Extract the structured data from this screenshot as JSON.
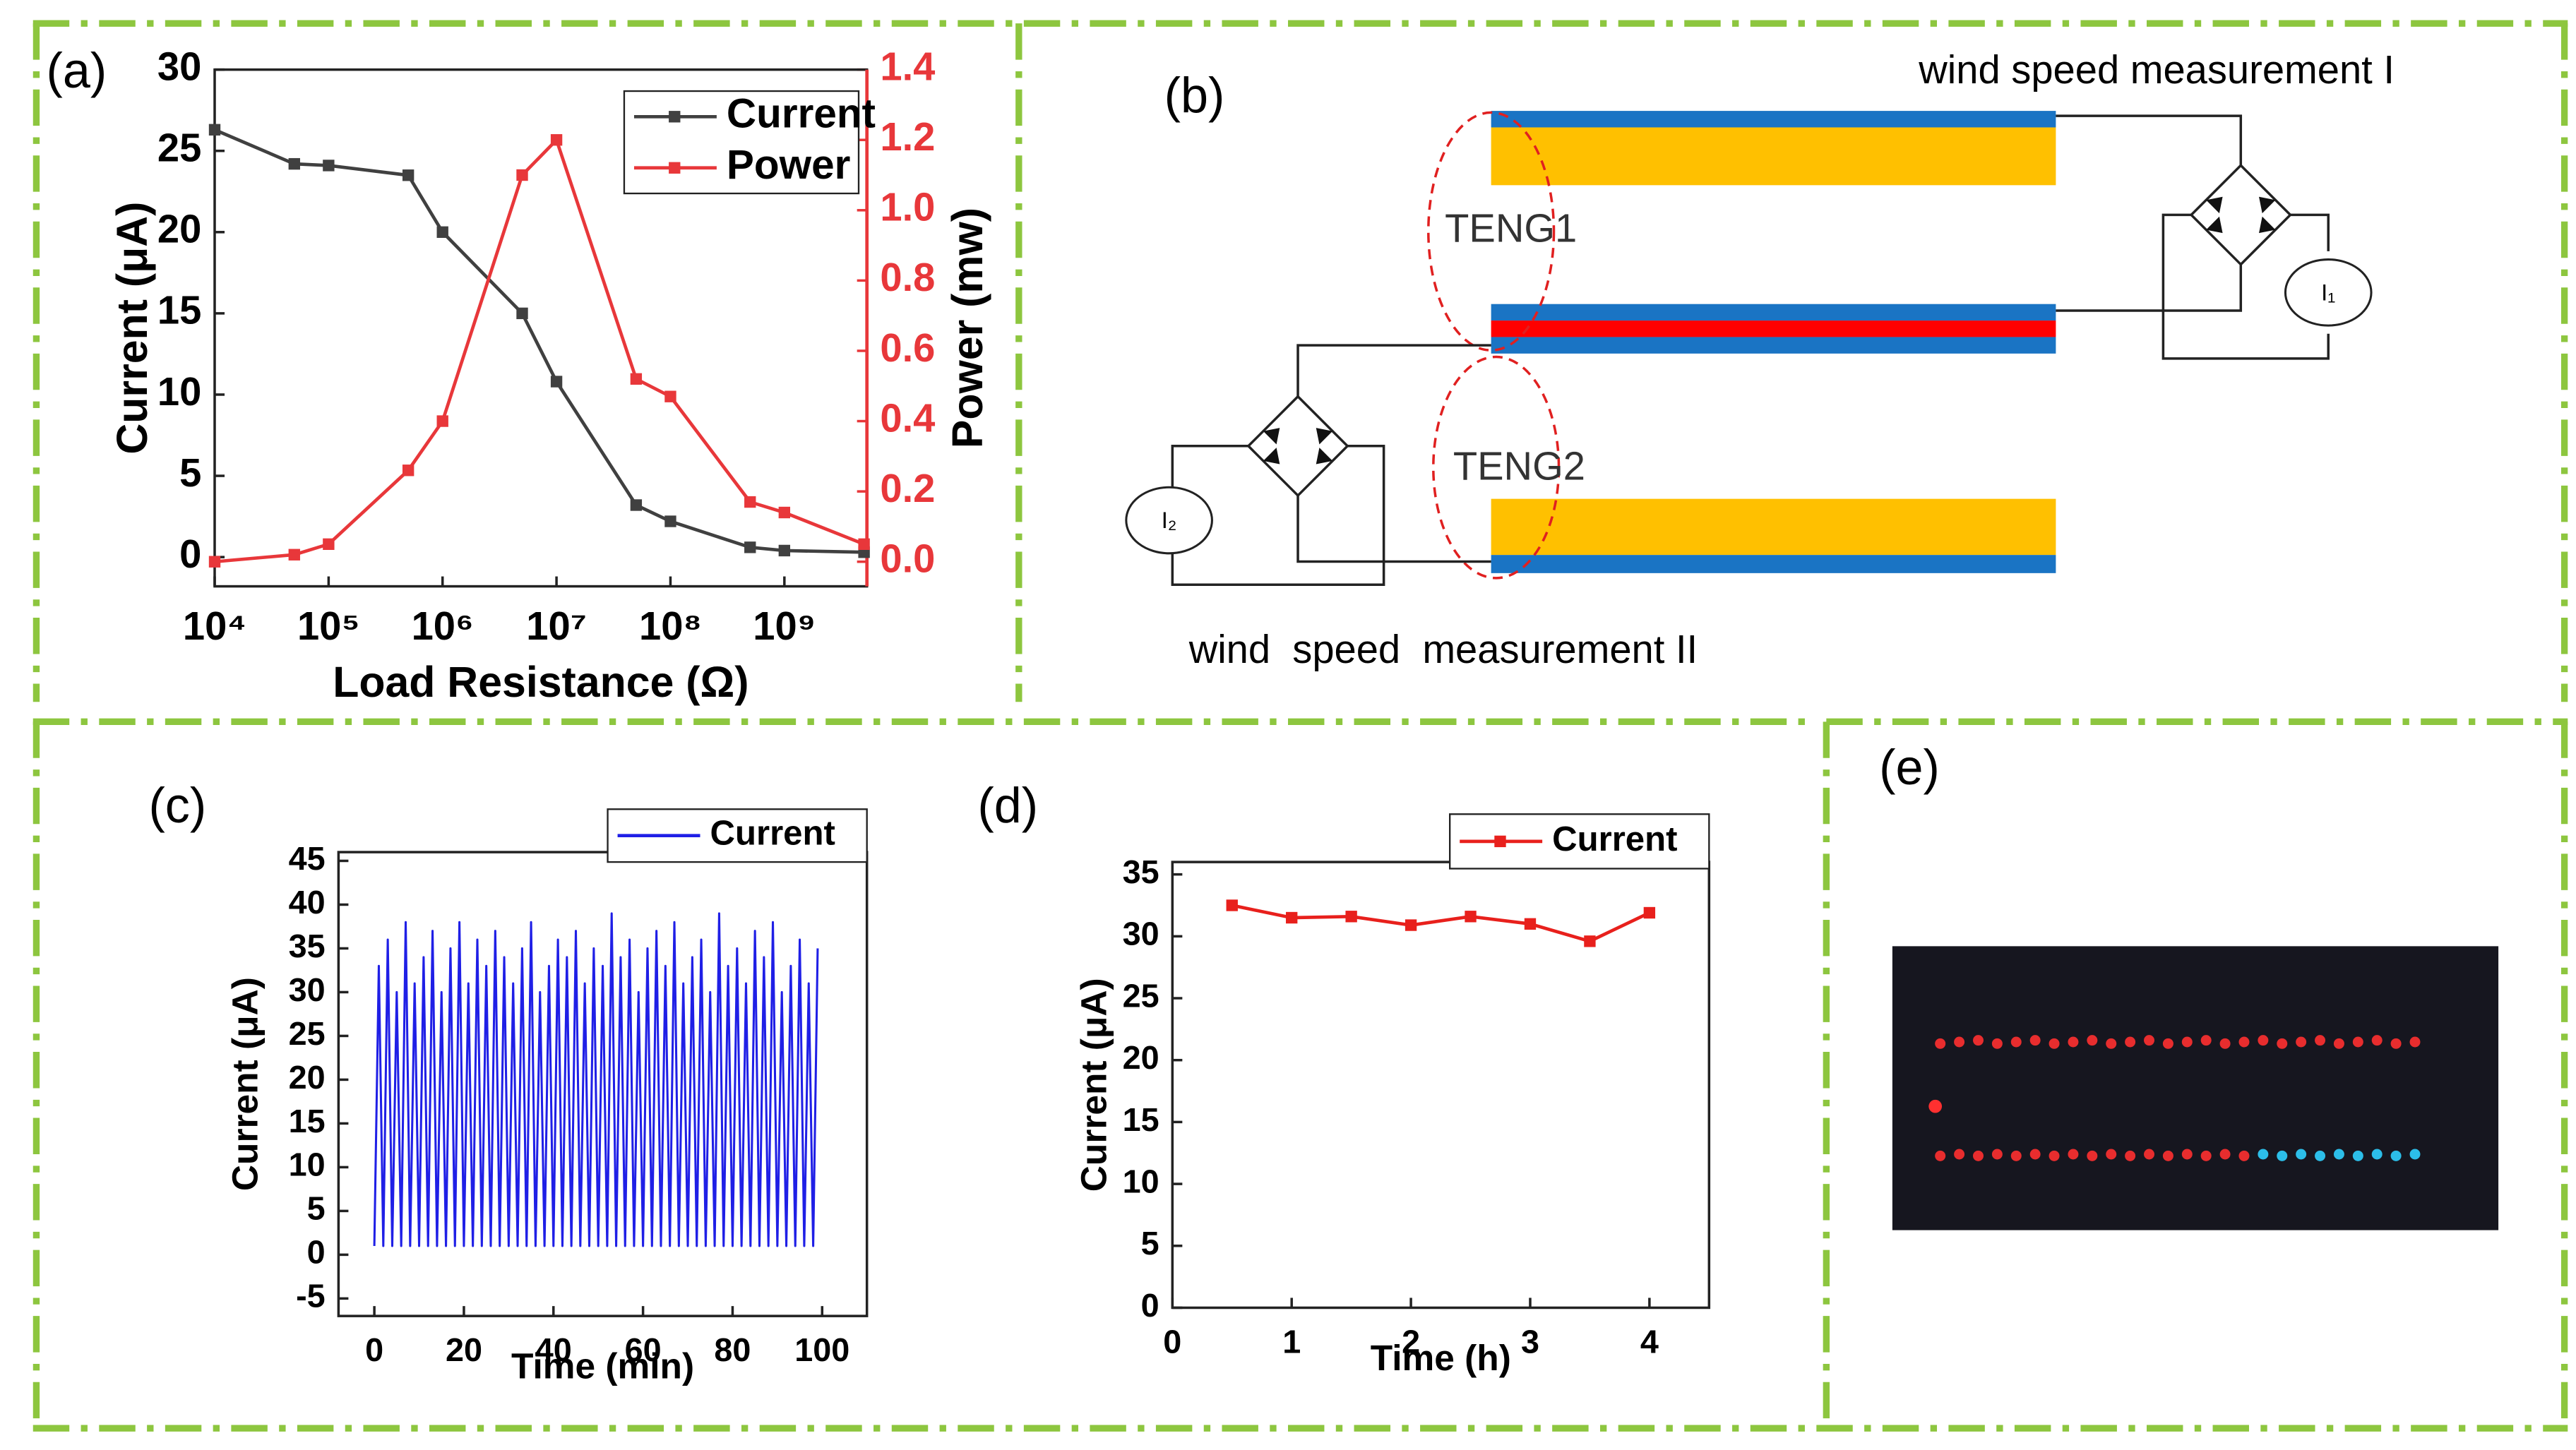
{
  "chart_data": [
    {
      "type": "line",
      "label": "(a)",
      "xlabel": "Load Resistance (Ω)",
      "ylabel": "Current (μA)",
      "y2label": "Power (mw)",
      "xscale": "log",
      "x": [
        10000,
        50000,
        100000,
        500000,
        1000000,
        5000000,
        10000000,
        50000000,
        100000000,
        500000000,
        1000000000,
        5000000000
      ],
      "series": [
        {
          "name": "Current",
          "color": "#404040",
          "marker": "square",
          "values": [
            26.3,
            24.2,
            24.1,
            23.5,
            20,
            15,
            10.8,
            3.2,
            2.2,
            0.6,
            0.4,
            0.3
          ]
        },
        {
          "name": "Power",
          "color": "#e8373a",
          "marker": "square",
          "axis": "y2",
          "values": [
            0,
            0.02,
            0.05,
            0.26,
            0.4,
            1.1,
            1.2,
            0.52,
            0.47,
            0.17,
            0.14,
            0.05
          ]
        }
      ],
      "xlim": [
        10000,
        5300000000
      ],
      "xticks": [
        {
          "value": 10000,
          "label": "10⁴"
        },
        {
          "value": 100000,
          "label": "10⁵"
        },
        {
          "value": 1000000,
          "label": "10⁶"
        },
        {
          "value": 10000000,
          "label": "10⁷"
        },
        {
          "value": 100000000,
          "label": "10⁸"
        },
        {
          "value": 1000000000,
          "label": "10⁹"
        }
      ],
      "ylim": [
        -1.8,
        30
      ],
      "yticks": [
        0,
        5,
        10,
        15,
        20,
        25,
        30
      ],
      "y2lim": [
        -0.07,
        1.4
      ],
      "y2ticks": [
        {
          "value": 0,
          "label": "0.0"
        },
        {
          "value": 0.2,
          "label": "0.2"
        },
        {
          "value": 0.4,
          "label": "0.4"
        },
        {
          "value": 0.6,
          "label": "0.6"
        },
        {
          "value": 0.8,
          "label": "0.8"
        },
        {
          "value": 1,
          "label": "1.0"
        },
        {
          "value": 1.2,
          "label": "1.2"
        },
        {
          "value": 1.4,
          "label": "1.4"
        }
      ],
      "legend": "upper right"
    },
    {
      "type": "line",
      "label": "(c)",
      "xlabel": "Time (min)",
      "ylabel": "Current (μA)",
      "x": [
        0,
        1,
        2,
        3,
        4,
        5,
        6,
        7,
        8,
        9,
        10,
        11,
        12,
        13,
        14,
        15,
        16,
        17,
        18,
        19,
        20,
        21,
        22,
        23,
        24,
        25,
        26,
        27,
        28,
        29,
        30,
        31,
        32,
        33,
        34,
        35,
        36,
        37,
        38,
        39,
        40,
        41,
        42,
        43,
        44,
        45,
        46,
        47,
        48,
        49,
        50,
        51,
        52,
        53,
        54,
        55,
        56,
        57,
        58,
        59,
        60,
        61,
        62,
        63,
        64,
        65,
        66,
        67,
        68,
        69,
        70,
        71,
        72,
        73,
        74,
        75,
        76,
        77,
        78,
        79,
        80,
        81,
        82,
        83,
        84,
        85,
        86,
        87,
        88,
        89,
        90,
        91,
        92,
        93,
        94,
        95,
        96,
        97,
        98,
        99
      ],
      "series": [
        {
          "name": "Current",
          "color": "#1f1fe6",
          "values": [
            1,
            33,
            1,
            36,
            1,
            30,
            1,
            38,
            1,
            31,
            1,
            34,
            1,
            37,
            1,
            30,
            1,
            35,
            1,
            38,
            1,
            31,
            1,
            36,
            1,
            33,
            1,
            37,
            1,
            34,
            1,
            31,
            1,
            35,
            1,
            38,
            1,
            30,
            1,
            33,
            1,
            36,
            1,
            34,
            1,
            37,
            1,
            31,
            1,
            35,
            1,
            33,
            1,
            39,
            1,
            34,
            1,
            36,
            1,
            30,
            1,
            35,
            1,
            37,
            1,
            33,
            1,
            38,
            1,
            31,
            1,
            34,
            1,
            36,
            1,
            30,
            1,
            39,
            1,
            33,
            1,
            35,
            1,
            31,
            1,
            37,
            1,
            34,
            1,
            38,
            1,
            30,
            1,
            33,
            1,
            36,
            1,
            31,
            1,
            35
          ]
        }
      ],
      "xlim": [
        -8,
        110
      ],
      "xticks": [
        0,
        20,
        40,
        60,
        80,
        100
      ],
      "ylim": [
        -7,
        46
      ],
      "yticks": [
        -5,
        0,
        5,
        10,
        15,
        20,
        25,
        30,
        35,
        40,
        45
      ],
      "legend": "upper right"
    },
    {
      "type": "line",
      "label": "(d)",
      "xlabel": "Time (h)",
      "ylabel": "Current (μA)",
      "x": [
        0.5,
        1,
        1.5,
        2,
        2.5,
        3,
        3.5,
        4
      ],
      "series": [
        {
          "name": "Current",
          "color": "#e8201c",
          "marker": "square",
          "values": [
            32.5,
            31.5,
            31.6,
            30.9,
            31.6,
            31.0,
            29.6,
            31.9
          ]
        }
      ],
      "xlim": [
        0,
        4.5
      ],
      "xticks": [
        0,
        1,
        2,
        3,
        4
      ],
      "ylim": [
        0,
        36
      ],
      "yticks": [
        0,
        5,
        10,
        15,
        20,
        25,
        30,
        35
      ],
      "legend": "upper right"
    }
  ],
  "diagram": {
    "label": "(b)",
    "title_top": "wind speed measurement I",
    "teng1": "TENG1",
    "teng2": "TENG2",
    "title_bottom": "wind  speed  measurement II",
    "meter1": "I₁",
    "meter2": "I₂"
  },
  "photo": {
    "label": "(e)"
  }
}
